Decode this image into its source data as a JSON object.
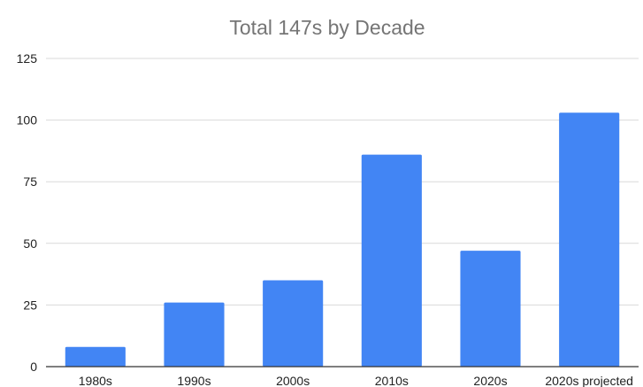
{
  "chart_data": {
    "type": "bar",
    "title": "Total 147s by Decade",
    "categories": [
      "1980s",
      "1990s",
      "2000s",
      "2010s",
      "2020s",
      "2020s projected"
    ],
    "values": [
      8,
      26,
      35,
      86,
      47,
      103
    ],
    "yticks": [
      0,
      25,
      50,
      75,
      100,
      125
    ],
    "ylim": [
      0,
      125
    ],
    "grid": true,
    "legend": "none",
    "bar_color": "#4285f4"
  }
}
